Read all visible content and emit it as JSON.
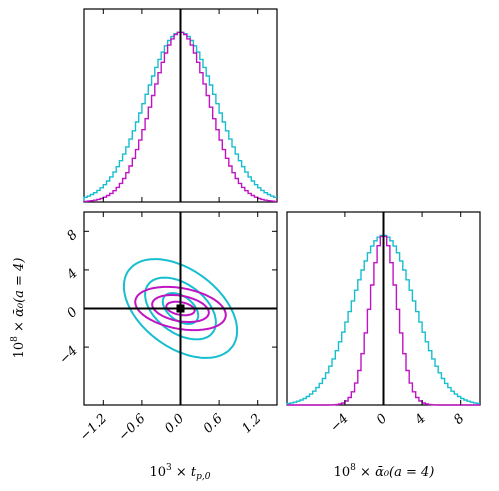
{
  "colors": {
    "cyan": "#17becf",
    "magenta": "#c014c4",
    "truth": "#000000"
  },
  "chart_data": {
    "type": "corner",
    "parameters": [
      {
        "name": "tp0",
        "label": "10³ × t_{p,0}",
        "label_parts": {
          "base": "10",
          "exp": "3",
          "times": " × ",
          "var": "t",
          "sub": "p,0"
        },
        "range": [
          -1.5,
          1.5
        ],
        "ticks": [
          -1.2,
          -0.6,
          0.0,
          0.6,
          1.2
        ],
        "tick_labels": [
          "−1.2",
          "−0.6",
          "0.0",
          "0.6",
          "1.2"
        ],
        "truth": 0.0
      },
      {
        "name": "alpha0",
        "label": "10⁸ × ᾱ₀(a = 4)",
        "label_parts": {
          "base": "10",
          "exp": "8",
          "times": " × ",
          "rest": "ᾱ₀(a = 4)"
        },
        "range": [
          -10,
          10
        ],
        "ticks": [
          -4,
          0,
          4,
          8
        ],
        "tick_labels": [
          "−4",
          "0",
          "4",
          "8"
        ],
        "truth": 0.0
      }
    ],
    "series": [
      {
        "color_key": "cyan",
        "tp0": {
          "mean": 0.0,
          "sigma": 0.55
        },
        "alpha0": {
          "mean": 0.0,
          "sigma": 3.2
        },
        "correlation": -0.45,
        "contour_levels_sigma": [
          0.5,
          1.0,
          1.6
        ]
      },
      {
        "color_key": "magenta",
        "tp0": {
          "mean": 0.0,
          "sigma": 0.44
        },
        "alpha0": {
          "mean": 0.0,
          "sigma": 1.4
        },
        "correlation": -0.3,
        "contour_levels_sigma": [
          0.5,
          1.0,
          1.6
        ]
      }
    ],
    "best_fit_marker": {
      "tp0": 0.0,
      "alpha0": 0.0
    },
    "grid": false
  }
}
